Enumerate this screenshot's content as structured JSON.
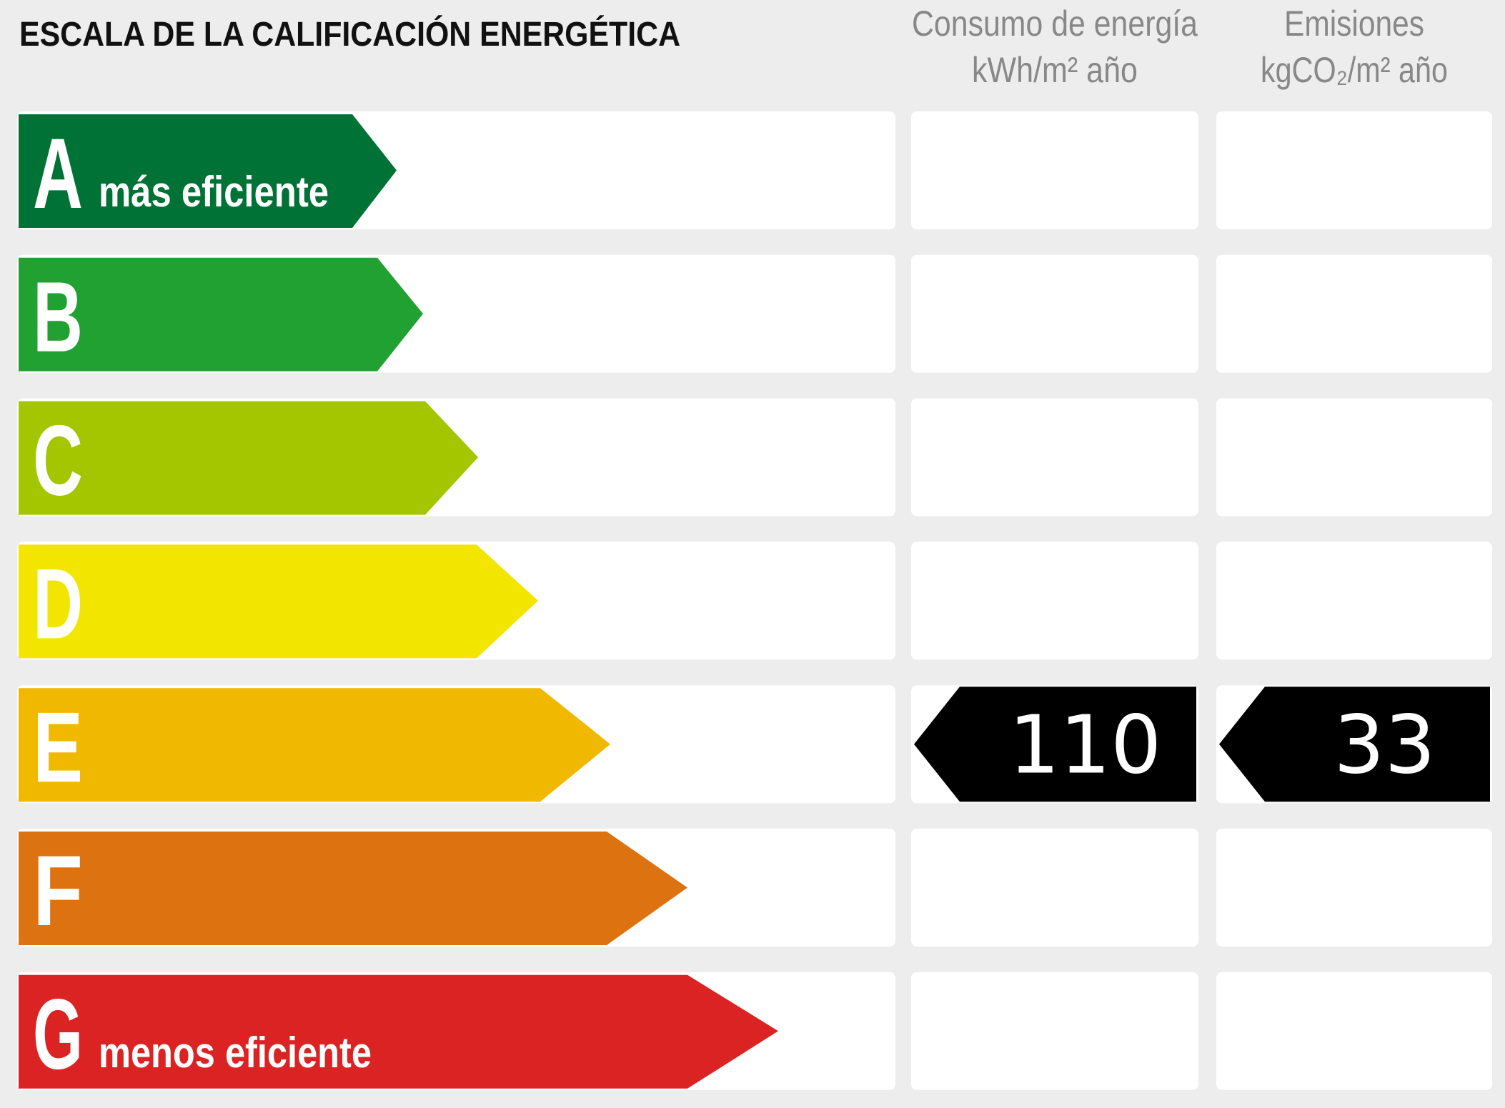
{
  "title": "ESCALA DE LA CALIFICACIÓN ENERGÉTICA",
  "columns": [
    {
      "title": "Consumo de energía",
      "unit": "kWh/m² año"
    },
    {
      "title": "Emisiones",
      "unit": "kgCO₂/m² año"
    }
  ],
  "ratings": [
    {
      "letter": "A",
      "label": "más eficiente",
      "color": "#007236"
    },
    {
      "letter": "B",
      "color": "#21a131"
    },
    {
      "letter": "C",
      "color": "#a3c600"
    },
    {
      "letter": "D",
      "color": "#f2e600"
    },
    {
      "letter": "E",
      "color": "#f0b900"
    },
    {
      "letter": "F",
      "color": "#dd7210"
    },
    {
      "letter": "G",
      "label": "menos eficiente",
      "color": "#dc2323"
    }
  ],
  "current": {
    "rating": "E",
    "values": [
      "110",
      "33"
    ]
  }
}
